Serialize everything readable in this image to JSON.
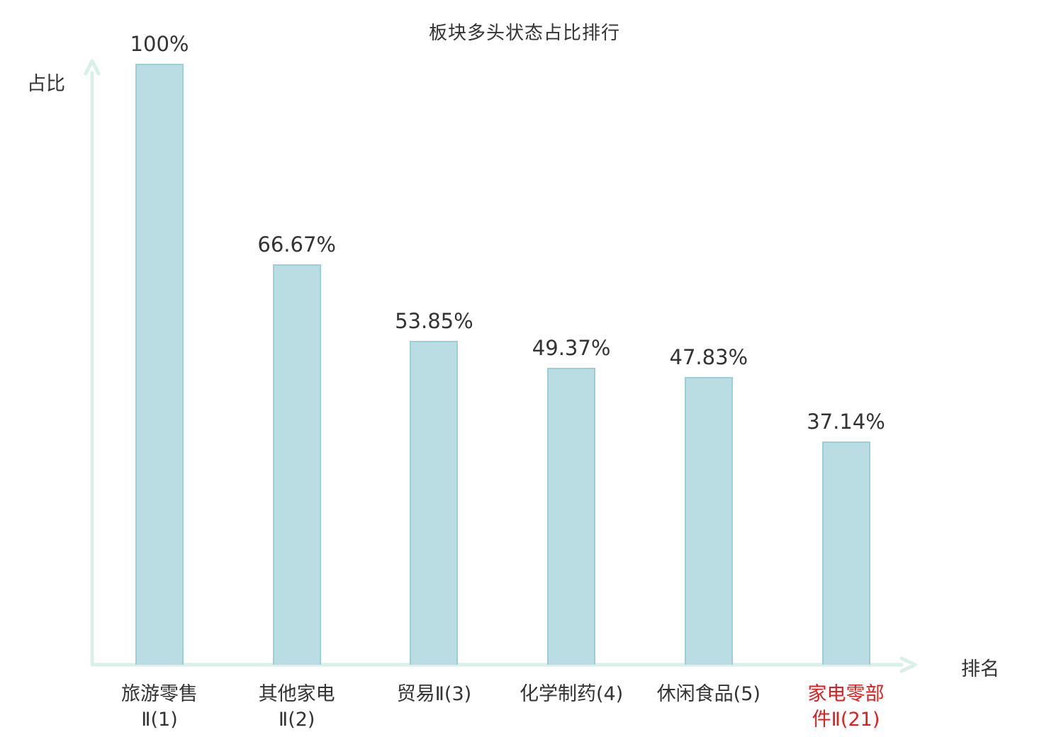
{
  "chart_data": {
    "type": "bar",
    "title": "板块多头状态占比排行",
    "xlabel": "排名",
    "ylabel": "占比",
    "categories": [
      "旅游零售\nⅡ(1)",
      "其他家电\nⅡ(2)",
      "贸易Ⅱ(3)",
      "化学制药(4)",
      "休闲食品(5)",
      "家电零部\n件Ⅱ(21)"
    ],
    "values": [
      100,
      66.67,
      53.85,
      49.37,
      47.83,
      37.14
    ],
    "value_labels": [
      "100%",
      "66.67%",
      "53.85%",
      "49.37%",
      "47.83%",
      "37.14%"
    ],
    "highlight_index": 5,
    "ylim": [
      0,
      100
    ],
    "grid": false,
    "legend": false
  },
  "colors": {
    "bar_fill": "#b9dde3",
    "bar_border": "#9bcfd8",
    "axis": "#d9efe9",
    "text": "#333333",
    "highlight": "#e11d1d"
  }
}
